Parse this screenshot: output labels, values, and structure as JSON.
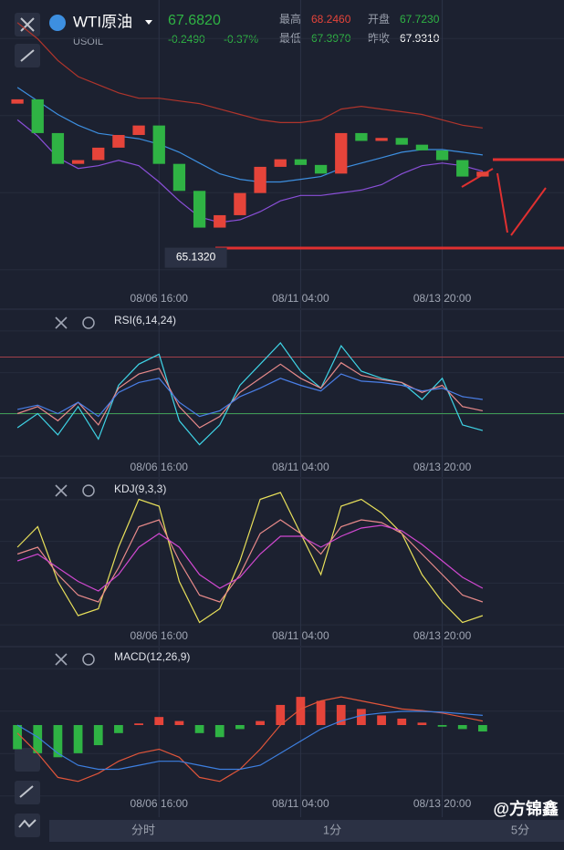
{
  "header": {
    "symbol": "WTI原油",
    "code": "USOIL",
    "price": "67.6820",
    "change": "-0.2490",
    "change_pct": "-0.37%",
    "stats": [
      {
        "label": "最高",
        "value": "68.2460"
      },
      {
        "label": "开盘",
        "value": "67.7230"
      },
      {
        "label": "最低",
        "value": "67.3970"
      },
      {
        "label": "昨收",
        "value": "67.9310"
      }
    ]
  },
  "tabs": [
    "分时",
    "1分",
    "5分"
  ],
  "watermark": "@方锦鑫",
  "chart_data": [
    {
      "type": "candlestick",
      "low_label": "65.1320",
      "up_color": "#e5443a",
      "down_color": "#2fb344",
      "categories": [
        null,
        null,
        null,
        null,
        null,
        null,
        null,
        "08/06 16:00",
        null,
        null,
        null,
        null,
        null,
        null,
        "08/11 04:00",
        null,
        null,
        null,
        null,
        null,
        null,
        "08/13 20:00",
        null,
        null
      ],
      "open": [
        70.2,
        70.36,
        69.11,
        67.97,
        68.11,
        68.57,
        69.04,
        69.39,
        67.97,
        66.97,
        65.61,
        66.07,
        66.89,
        67.86,
        68.14,
        67.93,
        67.61,
        69.11,
        68.82,
        68.93,
        68.68,
        68.47,
        68.11,
        67.5
      ],
      "close": [
        70.36,
        69.11,
        67.97,
        68.11,
        68.57,
        69.04,
        69.39,
        67.97,
        66.97,
        65.61,
        66.07,
        66.89,
        67.86,
        68.14,
        67.93,
        67.61,
        69.11,
        68.82,
        68.93,
        68.68,
        68.47,
        68.11,
        67.5,
        67.68
      ],
      "series": [
        {
          "color": "#b0352c",
          "values": [
            73.2,
            72.6,
            71.8,
            71.2,
            70.9,
            70.6,
            70.4,
            70.4,
            70.3,
            70.2,
            70.0,
            69.8,
            69.6,
            69.5,
            69.5,
            69.6,
            70.0,
            70.1,
            70.0,
            69.9,
            69.8,
            69.6,
            69.4,
            69.3
          ]
        },
        {
          "color": "#3d8fe0",
          "values": [
            70.8,
            70.3,
            69.8,
            69.4,
            69.1,
            69.0,
            68.9,
            68.7,
            68.4,
            68.0,
            67.6,
            67.4,
            67.3,
            67.3,
            67.4,
            67.5,
            67.8,
            68.0,
            68.2,
            68.4,
            68.5,
            68.5,
            68.4,
            68.3
          ]
        },
        {
          "color": "#8a4fd8",
          "values": [
            69.6,
            69.0,
            68.2,
            67.8,
            67.9,
            68.1,
            67.9,
            67.3,
            66.6,
            66.0,
            65.8,
            65.9,
            66.2,
            66.6,
            66.8,
            66.8,
            66.9,
            67.0,
            67.2,
            67.6,
            67.9,
            68.0,
            67.9,
            67.7
          ]
        }
      ],
      "ylim": [
        63.4,
        73.7
      ]
    },
    {
      "type": "line",
      "title": "RSI(6,14,24)",
      "categories": [
        null,
        null,
        null,
        null,
        null,
        null,
        null,
        "08/06 16:00",
        null,
        null,
        null,
        null,
        null,
        null,
        "08/11 04:00",
        null,
        null,
        null,
        null,
        null,
        null,
        "08/13 20:00",
        null,
        null
      ],
      "hlines": [
        {
          "value": 70,
          "color": "#a0404a"
        },
        {
          "value": 30,
          "color": "#3f9a55"
        }
      ],
      "series": [
        {
          "color": "#3fd4e6",
          "values": [
            20,
            30,
            15,
            35,
            12,
            50,
            65,
            72,
            25,
            8,
            22,
            50,
            65,
            80,
            60,
            48,
            78,
            60,
            55,
            52,
            40,
            55,
            22,
            18
          ]
        },
        {
          "color": "#e88a8a",
          "values": [
            30,
            35,
            25,
            38,
            22,
            48,
            58,
            62,
            35,
            20,
            28,
            45,
            55,
            65,
            55,
            48,
            66,
            57,
            54,
            52,
            45,
            50,
            35,
            32
          ]
        },
        {
          "color": "#4a7fe8",
          "values": [
            33,
            36,
            30,
            38,
            28,
            45,
            52,
            55,
            38,
            28,
            32,
            42,
            48,
            55,
            50,
            46,
            58,
            53,
            52,
            50,
            46,
            48,
            42,
            40
          ]
        }
      ],
      "ylim": [
        0,
        100
      ]
    },
    {
      "type": "line",
      "title": "KDJ(9,3,3)",
      "categories": [
        null,
        null,
        null,
        null,
        null,
        null,
        null,
        "08/06 16:00",
        null,
        null,
        null,
        null,
        null,
        null,
        "08/11 04:00",
        null,
        null,
        null,
        null,
        null,
        null,
        "08/13 20:00",
        null,
        null
      ],
      "series": [
        {
          "color": "#e8e05a",
          "values": [
            60,
            75,
            35,
            10,
            15,
            60,
            95,
            90,
            35,
            5,
            15,
            50,
            95,
            100,
            70,
            40,
            90,
            95,
            85,
            70,
            40,
            20,
            5,
            10
          ]
        },
        {
          "color": "#e88a8a",
          "values": [
            55,
            60,
            40,
            25,
            20,
            45,
            75,
            80,
            50,
            25,
            20,
            40,
            70,
            80,
            70,
            55,
            75,
            80,
            78,
            70,
            55,
            40,
            25,
            20
          ]
        },
        {
          "color": "#d048d0",
          "values": [
            50,
            55,
            45,
            35,
            28,
            40,
            60,
            70,
            60,
            40,
            30,
            38,
            55,
            68,
            68,
            60,
            68,
            74,
            76,
            72,
            62,
            50,
            38,
            30
          ]
        }
      ],
      "ylim": [
        0,
        100
      ]
    },
    {
      "type": "combo",
      "title": "MACD(12,26,9)",
      "up_color": "#e5443a",
      "down_color": "#2fb344",
      "categories": [
        null,
        null,
        null,
        null,
        null,
        null,
        null,
        "08/06 16:00",
        null,
        null,
        null,
        null,
        null,
        null,
        "08/11 04:00",
        null,
        null,
        null,
        null,
        null,
        null,
        "08/13 20:00",
        null,
        null
      ],
      "values": [
        -0.3,
        -0.35,
        -0.4,
        -0.35,
        -0.25,
        -0.1,
        0.02,
        0.1,
        0.05,
        -0.1,
        -0.15,
        -0.05,
        0.05,
        0.25,
        0.35,
        0.3,
        0.25,
        0.2,
        0.12,
        0.08,
        0.03,
        -0.02,
        -0.05,
        -0.08
      ],
      "series": [
        {
          "color": "#e0553a",
          "values": [
            -0.1,
            -0.35,
            -0.65,
            -0.7,
            -0.6,
            -0.45,
            -0.35,
            -0.3,
            -0.4,
            -0.65,
            -0.7,
            -0.55,
            -0.3,
            0.0,
            0.2,
            0.3,
            0.35,
            0.3,
            0.25,
            0.2,
            0.18,
            0.15,
            0.1,
            0.05
          ]
        },
        {
          "color": "#3d7fe0",
          "values": [
            0.0,
            -0.15,
            -0.35,
            -0.5,
            -0.55,
            -0.55,
            -0.5,
            -0.45,
            -0.45,
            -0.5,
            -0.55,
            -0.55,
            -0.5,
            -0.35,
            -0.2,
            -0.05,
            0.05,
            0.12,
            0.15,
            0.17,
            0.17,
            0.16,
            0.14,
            0.12
          ]
        }
      ],
      "ylim": [
        -0.85,
        0.85
      ]
    }
  ]
}
